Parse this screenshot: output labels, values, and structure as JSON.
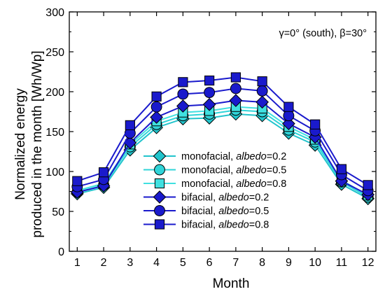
{
  "chart_data": {
    "type": "line",
    "xlabel": "Month",
    "ylabel": [
      "Normalized energy",
      "produced in the month [Wh/Wp]"
    ],
    "annotation": "γ=0° (south), β=30°",
    "x": [
      1,
      2,
      3,
      4,
      5,
      6,
      7,
      8,
      9,
      10,
      11,
      12
    ],
    "xticks": [
      "1",
      "2",
      "3",
      "4",
      "5",
      "6",
      "7",
      "8",
      "9",
      "10",
      "11",
      "12"
    ],
    "xlim": [
      0.7,
      12.3
    ],
    "ylim": [
      0,
      300
    ],
    "yticks": [
      "0",
      "50",
      "100",
      "150",
      "200",
      "250",
      "300"
    ],
    "grid": false,
    "legend_position": "bottom-center",
    "series": [
      {
        "name": "monofacial, ",
        "name_italic": "albedo",
        "name_suffix": "=0.2",
        "marker": "diamond",
        "color": "#22c4cc",
        "values": [
          72,
          80,
          127,
          155,
          166,
          167,
          172,
          170,
          148,
          133,
          84,
          66
        ]
      },
      {
        "name": "monofacial, ",
        "name_italic": "albedo",
        "name_suffix": "=0.5",
        "marker": "circle",
        "color": "#30d4d8",
        "values": [
          74,
          83,
          131,
          159,
          170,
          172,
          177,
          175,
          152,
          137,
          87,
          68
        ]
      },
      {
        "name": "monofacial, ",
        "name_italic": "albedo",
        "name_suffix": "=0.8",
        "marker": "square",
        "color": "#40e0e0",
        "values": [
          76,
          85,
          134,
          163,
          174,
          176,
          181,
          179,
          156,
          140,
          89,
          70
        ]
      },
      {
        "name": "bifacial, ",
        "name_italic": "albedo",
        "name_suffix": "=0.2",
        "marker": "diamond",
        "color": "#1a1acc",
        "values": [
          74,
          82,
          136,
          168,
          182,
          184,
          189,
          187,
          160,
          143,
          88,
          71
        ]
      },
      {
        "name": "bifacial, ",
        "name_italic": "albedo",
        "name_suffix": "=0.5",
        "marker": "circle",
        "color": "#1a1acc",
        "values": [
          81,
          90,
          148,
          181,
          197,
          199,
          204,
          201,
          170,
          151,
          96,
          76
        ]
      },
      {
        "name": "bifacial, ",
        "name_italic": "albedo",
        "name_suffix": "=0.8",
        "marker": "square",
        "color": "#1a1acc",
        "values": [
          88,
          99,
          158,
          194,
          212,
          214,
          218,
          213,
          181,
          159,
          103,
          83
        ]
      }
    ]
  }
}
